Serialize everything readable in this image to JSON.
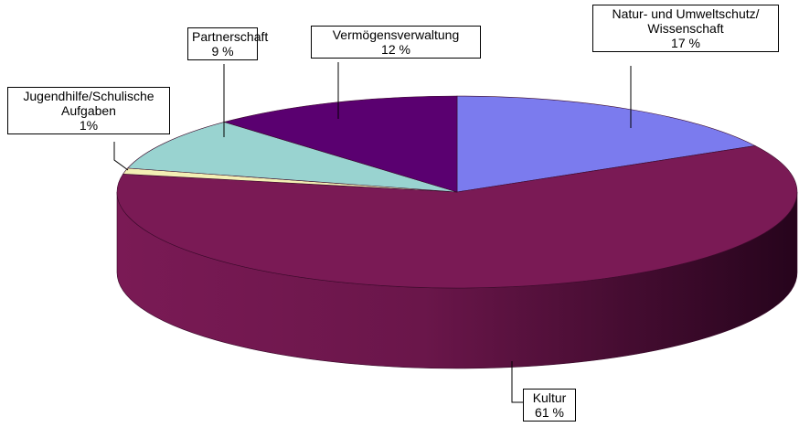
{
  "chart_data": {
    "type": "pie3d",
    "categories": [
      "Natur- und Umweltschutz/\nWissenschaft",
      "Kultur",
      "Jugendhilfe/Schulische\nAufgaben",
      "Partnerschaft",
      "Vermögensverwaltung"
    ],
    "values": [
      17,
      61,
      1,
      9,
      12
    ],
    "value_labels": [
      "17 %",
      "61 %",
      "1%",
      "9 %",
      "12 %"
    ],
    "colors": [
      "#7b7bee",
      "#7a1a55",
      "#f3efb4",
      "#99d3d0",
      "#5a0070"
    ]
  }
}
